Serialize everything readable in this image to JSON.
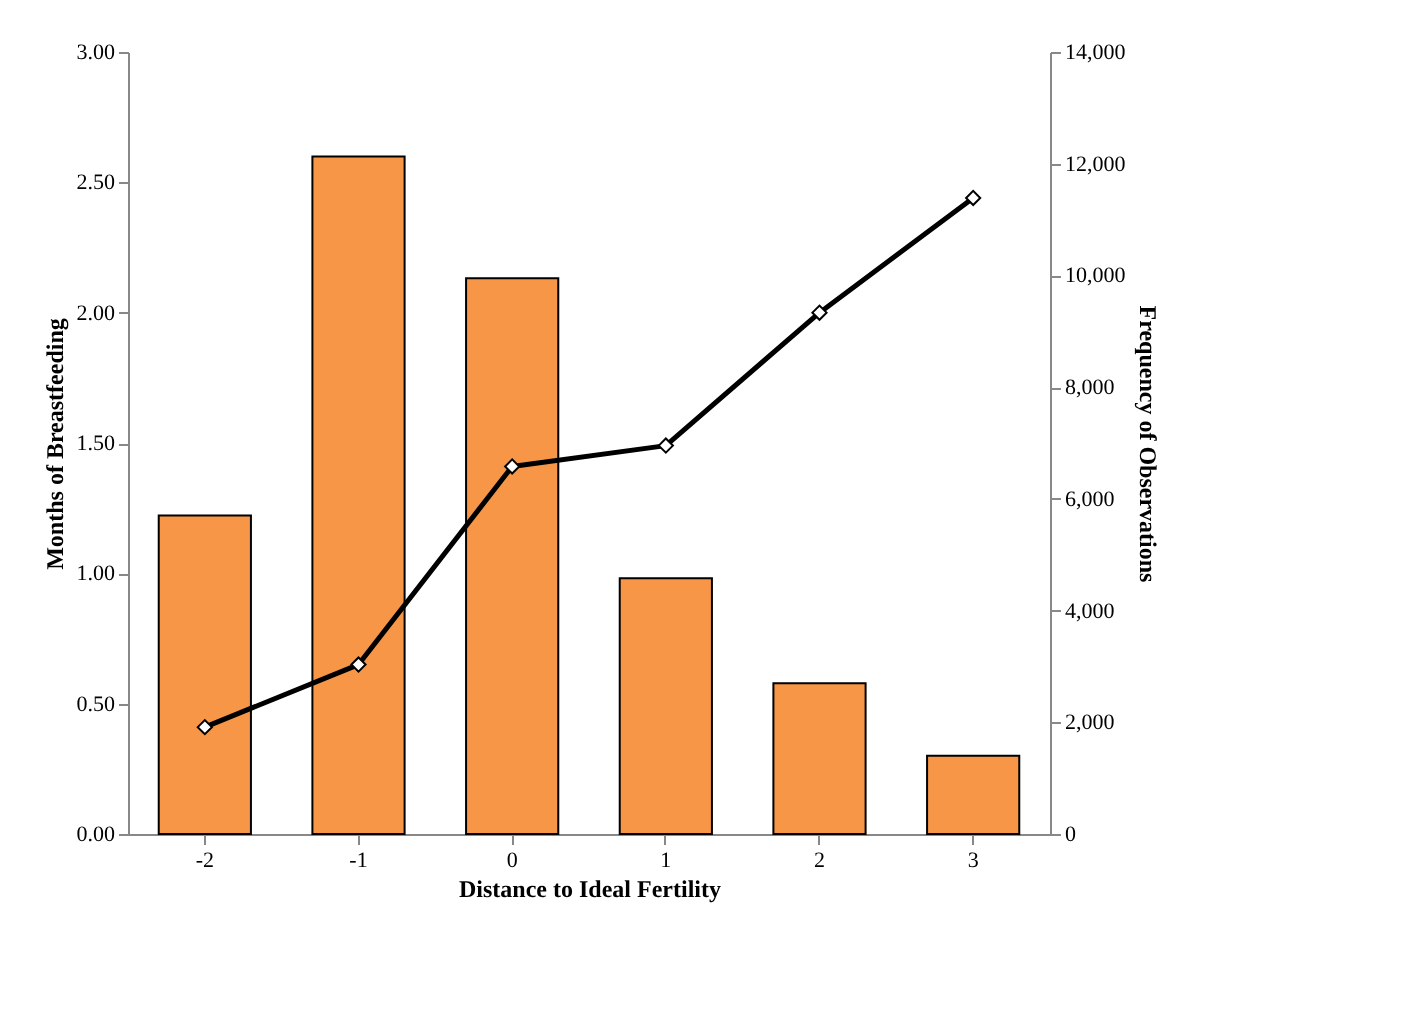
{
  "chart_data": {
    "type": "bar",
    "xlabel": "Distance to Ideal Fertility",
    "ylabel": "Months of Breastfeeding",
    "y2label": "Frequency of Observations",
    "categories": [
      "-2",
      "-1",
      "0",
      "1",
      "2",
      "3"
    ],
    "series": [
      {
        "axis": "y2",
        "color": "#f79646",
        "values": [
          5700,
          12130,
          9950,
          4580,
          2700,
          1400
        ]
      },
      {
        "type": "line",
        "axis": "y",
        "color": "#000000",
        "marker": "diamond",
        "line_style": "solid",
        "values": [
          0.41,
          0.65,
          1.41,
          1.49,
          2.0,
          2.44
        ]
      }
    ],
    "ylim": [
      0,
      3
    ],
    "yticks": [
      {
        "value": 0,
        "label": "0.00"
      },
      {
        "value": 0.5,
        "label": "0.50"
      },
      {
        "value": 1,
        "label": "1.00"
      },
      {
        "value": 1.5,
        "label": "1.50"
      },
      {
        "value": 2,
        "label": "2.00"
      },
      {
        "value": 2.5,
        "label": "2.50"
      },
      {
        "value": 3,
        "label": "3.00"
      }
    ],
    "y2lim": [
      0,
      14000
    ],
    "y2ticks": [
      0,
      {
        "value": 2000,
        "label": "2,000"
      },
      {
        "value": 4000,
        "label": "4,000"
      },
      {
        "value": 6000,
        "label": "6,000"
      },
      {
        "value": 8000,
        "label": "8,000"
      },
      {
        "value": 10000,
        "label": "10,000"
      },
      {
        "value": 12000,
        "label": "12,000"
      },
      {
        "value": 14000,
        "label": "14,000"
      }
    ],
    "grid": false,
    "legend": false
  }
}
